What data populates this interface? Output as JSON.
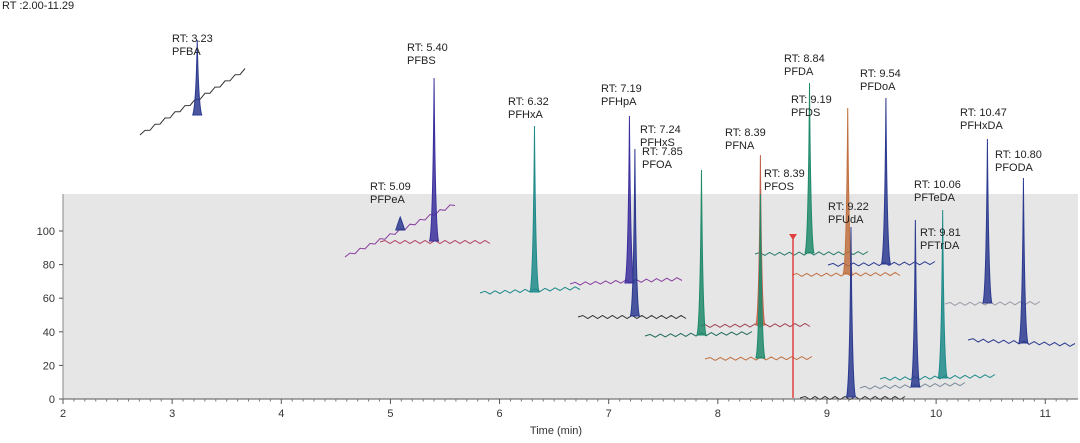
{
  "header": {
    "rt_range": "RT :2.00-11.29"
  },
  "chart_data": {
    "type": "line",
    "title": "",
    "xlabel": "Time (min)",
    "ylabel": "",
    "xlim": [
      2,
      11.3
    ],
    "ylim": [
      0,
      100
    ],
    "x_ticks": [
      "2",
      "3",
      "4",
      "5",
      "6",
      "7",
      "8",
      "9",
      "10",
      "11"
    ],
    "y_ticks": [
      "0",
      "20",
      "40",
      "60",
      "80",
      "100"
    ],
    "grid": false,
    "peaks": [
      {
        "rt_label": "RT: 3.23",
        "name": "PFBA",
        "rt": 3.23,
        "color": "#2b3a8f"
      },
      {
        "rt_label": "RT: 5.09",
        "name": "PFPeA",
        "rt": 5.09,
        "color": "#2b3a8f"
      },
      {
        "rt_label": "RT: 5.40",
        "name": "PFBS",
        "rt": 5.4,
        "color": "#3a2f9e"
      },
      {
        "rt_label": "RT: 6.32",
        "name": "PFHxA",
        "rt": 6.32,
        "color": "#1f8a8a"
      },
      {
        "rt_label": "RT: 7.19",
        "name": "PFHpA",
        "rt": 7.19,
        "color": "#3a2f9e"
      },
      {
        "rt_label": "RT: 7.24",
        "name": "PFHxS",
        "rt": 7.24,
        "color": "#2b3a8f"
      },
      {
        "rt_label": "RT: 7.85",
        "name": "PFOA",
        "rt": 7.85,
        "color": "#1f8a6a"
      },
      {
        "rt_label": "RT: 8.39",
        "name": "PFNA",
        "rt": 8.39,
        "color": "#c0604a"
      },
      {
        "rt_label": "RT: 8.39",
        "name": "PFOS",
        "rt": 8.39,
        "color": "#1f8a6a"
      },
      {
        "rt_label": "RT: 8.84",
        "name": "PFDA",
        "rt": 8.84,
        "color": "#1f8a6a"
      },
      {
        "rt_label": "RT: 9.19",
        "name": "PFDS",
        "rt": 9.19,
        "color": "#c07040"
      },
      {
        "rt_label": "RT: 9.22",
        "name": "PFUdA",
        "rt": 9.22,
        "color": "#2b3a8f"
      },
      {
        "rt_label": "RT: 9.54",
        "name": "PFDoA",
        "rt": 9.54,
        "color": "#2b3a8f"
      },
      {
        "rt_label": "RT: 9.81",
        "name": "PFTrDA",
        "rt": 9.81,
        "color": "#2b3a8f"
      },
      {
        "rt_label": "RT: 10.06",
        "name": "PFTeDA",
        "rt": 10.06,
        "color": "#1f8a8a"
      },
      {
        "rt_label": "RT: 10.47",
        "name": "PFHxDA",
        "rt": 10.47,
        "color": "#2b3a8f"
      },
      {
        "rt_label": "RT: 10.80",
        "name": "PFODA",
        "rt": 10.8,
        "color": "#2b3a8f"
      }
    ]
  }
}
